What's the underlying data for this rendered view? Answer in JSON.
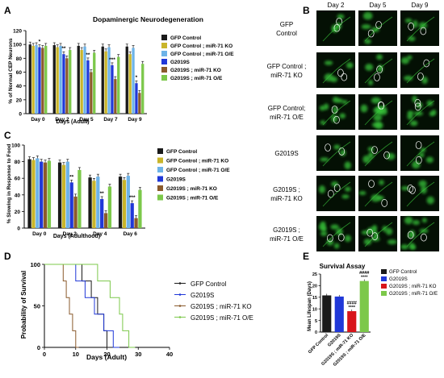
{
  "panel_labels": {
    "A": "A",
    "B": "B",
    "C": "C",
    "D": "D",
    "E": "E"
  },
  "colors": {
    "gfp_control": "#1a1a1a",
    "gfp_mir71_ko": "#c9b52a",
    "gfp_mir71_oe": "#6db3e8",
    "g2019s": "#2038d8",
    "g2019s_mir71_ko": "#8a5a2c",
    "g2019s_mir71_oe": "#7cc84a",
    "micro_bg": "#041004",
    "micro_cell": "#39c43a"
  },
  "chart_data": [
    {
      "id": "A",
      "type": "bar",
      "title": "Dopaminergic Neurodegeneration",
      "xlabel": "Days (Adult)",
      "ylabel": "% of Normal CEP Neurons",
      "ylim": [
        0,
        120
      ],
      "yticks": [
        0,
        20,
        40,
        60,
        80,
        100,
        120
      ],
      "categories": [
        "Day 0",
        "Day 2",
        "Day 5",
        "Day 7",
        "Day 9"
      ],
      "legend_position": "right",
      "series": [
        {
          "name": "GFP Control",
          "values": [
            100,
            99,
            98,
            97,
            97
          ]
        },
        {
          "name": "GFP Control ; miR-71 KO",
          "values": [
            98,
            96,
            92,
            90,
            86
          ]
        },
        {
          "name": "GFP Control ; miR-71 O/E",
          "values": [
            99,
            98,
            97,
            96,
            95
          ]
        },
        {
          "name": "G2019S",
          "values": [
            96,
            86,
            77,
            70,
            44
          ]
        },
        {
          "name": "G2019S ; miR-71 KO",
          "values": [
            95,
            80,
            60,
            50,
            30
          ]
        },
        {
          "name": "G2019S ; miR-71 O/E",
          "values": [
            98,
            92,
            88,
            82,
            72
          ]
        }
      ],
      "annotations": [
        "*",
        "**",
        "**",
        "***",
        "*"
      ]
    },
    {
      "id": "C",
      "type": "bar",
      "title": "",
      "xlabel": "Days (Adulthood)",
      "ylabel": "% Slowing in Response to Food",
      "ylim": [
        0,
        100
      ],
      "yticks": [
        0,
        20,
        40,
        60,
        80,
        100
      ],
      "categories": [
        "Day 0",
        "Day 2",
        "Day 4",
        "Day 6"
      ],
      "legend_position": "right",
      "series": [
        {
          "name": "GFP Control",
          "values": [
            83,
            79,
            61,
            62
          ]
        },
        {
          "name": "GFP Control ; miR-71 KO",
          "values": [
            82,
            76,
            57,
            58
          ]
        },
        {
          "name": "GFP Control ; miR-71 O/E",
          "values": [
            84,
            80,
            62,
            63
          ]
        },
        {
          "name": "G2019S",
          "values": [
            80,
            55,
            35,
            30
          ]
        },
        {
          "name": "G2019S ; miR-71 KO",
          "values": [
            79,
            38,
            18,
            12
          ]
        },
        {
          "name": "G2019S ; miR-71 O/E",
          "values": [
            81,
            70,
            50,
            46
          ]
        }
      ],
      "annotations": [
        "**",
        "**",
        "***"
      ]
    },
    {
      "id": "D",
      "type": "line",
      "title": "",
      "xlabel": "Days (Adult)",
      "ylabel": "Probability of Survival",
      "xlim": [
        0,
        40
      ],
      "ylim": [
        0,
        100
      ],
      "xticks": [
        0,
        10,
        20,
        30,
        40
      ],
      "yticks": [
        0,
        50,
        100
      ],
      "legend_position": "right",
      "series": [
        {
          "name": "GFP Control",
          "steps": [
            [
              0,
              100
            ],
            [
              12,
              100
            ],
            [
              12,
              80
            ],
            [
              15,
              80
            ],
            [
              15,
              60
            ],
            [
              17,
              60
            ],
            [
              17,
              40
            ],
            [
              19,
              40
            ],
            [
              19,
              20
            ],
            [
              20,
              20
            ],
            [
              20,
              0
            ],
            [
              23,
              0
            ]
          ]
        },
        {
          "name": "G2019S",
          "steps": [
            [
              0,
              100
            ],
            [
              10,
              100
            ],
            [
              10,
              80
            ],
            [
              13,
              80
            ],
            [
              13,
              60
            ],
            [
              16,
              60
            ],
            [
              16,
              40
            ],
            [
              19,
              40
            ],
            [
              19,
              20
            ],
            [
              22,
              20
            ],
            [
              22,
              0
            ],
            [
              24,
              0
            ]
          ]
        },
        {
          "name": "G2019S ; miR-71 KO",
          "steps": [
            [
              0,
              100
            ],
            [
              6,
              100
            ],
            [
              6,
              80
            ],
            [
              7,
              80
            ],
            [
              7,
              60
            ],
            [
              8,
              60
            ],
            [
              8,
              40
            ],
            [
              9,
              40
            ],
            [
              9,
              20
            ],
            [
              10,
              20
            ],
            [
              10,
              0
            ],
            [
              11,
              0
            ]
          ]
        },
        {
          "name": "G2019S ; miR-71 O/E",
          "steps": [
            [
              0,
              100
            ],
            [
              17,
              100
            ],
            [
              17,
              80
            ],
            [
              21,
              80
            ],
            [
              21,
              60
            ],
            [
              24,
              60
            ],
            [
              24,
              40
            ],
            [
              25,
              40
            ],
            [
              25,
              20
            ],
            [
              27,
              20
            ],
            [
              27,
              0
            ],
            [
              29,
              0
            ]
          ]
        }
      ]
    },
    {
      "id": "E",
      "type": "bar",
      "title": "Survival Assay",
      "xlabel": "",
      "ylabel": "Mean Lifespan (Days)",
      "ylim": [
        0,
        25
      ],
      "yticks": [
        0,
        5,
        10,
        15,
        20,
        25
      ],
      "categories": [
        "GFP Control",
        "G2019S",
        "G2019S ; miR-71 KO",
        "G2019S ; miR-71 O/E"
      ],
      "values": [
        15.8,
        15.3,
        9.0,
        22.0
      ],
      "legend_position": "right",
      "annotations": [
        "",
        "",
        "####\n****",
        "####\n****"
      ]
    }
  ],
  "panel_b": {
    "columns": [
      "Day 2",
      "Day 5",
      "Day 9"
    ],
    "rows": [
      "GFP\nControl",
      "GFP Control ;\nmiR-71 KO",
      "GFP Control;\nmiR-71 O/E",
      "G2019S",
      "G2019S ;\nmiR-71 KO",
      "G2019S ;\nmiR-71 O/E"
    ]
  }
}
